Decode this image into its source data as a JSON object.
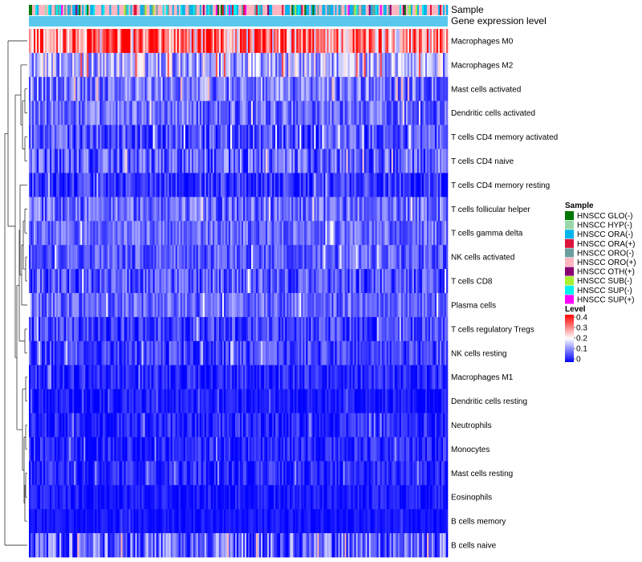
{
  "chart_data": {
    "type": "heatmap",
    "title": "",
    "annotations": {
      "sample_track_label": "Sample",
      "level_track_label": "Gene expression level"
    },
    "rows": [
      {
        "label": "Macrophages M0",
        "mean": 0.26,
        "spread": 0.14
      },
      {
        "label": "Macrophages M2",
        "mean": 0.12,
        "spread": 0.09
      },
      {
        "label": "Mast cells activated",
        "mean": 0.08,
        "spread": 0.07
      },
      {
        "label": "Dendritic cells activated",
        "mean": 0.07,
        "spread": 0.06
      },
      {
        "label": "T cells CD4 memory activated",
        "mean": 0.05,
        "spread": 0.06
      },
      {
        "label": "T cells CD4 naive",
        "mean": 0.06,
        "spread": 0.07
      },
      {
        "label": "T cells CD4 memory resting",
        "mean": 0.03,
        "spread": 0.05
      },
      {
        "label": "T cells follicular helper",
        "mean": 0.07,
        "spread": 0.06
      },
      {
        "label": "T cells gamma delta",
        "mean": 0.07,
        "spread": 0.05
      },
      {
        "label": "NK cells activated",
        "mean": 0.06,
        "spread": 0.05
      },
      {
        "label": "T cells CD8",
        "mean": 0.05,
        "spread": 0.06
      },
      {
        "label": "Plasma cells",
        "mean": 0.07,
        "spread": 0.05
      },
      {
        "label": "T cells regulatory  Tregs",
        "mean": 0.04,
        "spread": 0.05
      },
      {
        "label": "NK cells resting",
        "mean": 0.04,
        "spread": 0.05
      },
      {
        "label": "Macrophages M1",
        "mean": 0.02,
        "spread": 0.04
      },
      {
        "label": "Dendritic cells resting",
        "mean": 0.01,
        "spread": 0.03
      },
      {
        "label": "Neutrophils",
        "mean": 0.02,
        "spread": 0.04
      },
      {
        "label": "Monocytes",
        "mean": 0.02,
        "spread": 0.04
      },
      {
        "label": "Mast cells resting",
        "mean": 0.02,
        "spread": 0.04
      },
      {
        "label": "Eosinophils",
        "mean": 0.01,
        "spread": 0.03
      },
      {
        "label": "B cells memory",
        "mean": 0.01,
        "spread": 0.02
      },
      {
        "label": "B cells naive",
        "mean": 0.06,
        "spread": 0.08
      }
    ],
    "n_samples": 260,
    "sample_groups": [
      {
        "name": "HNSCC GLO(-)",
        "color": "#007700",
        "weight": 3
      },
      {
        "name": "HNSCC HYP(-)",
        "color": "#99d8a8",
        "weight": 3
      },
      {
        "name": "HNSCC ORA(-)",
        "color": "#00b4ee",
        "weight": 22
      },
      {
        "name": "HNSCC ORA(+)",
        "color": "#dc143c",
        "weight": 3
      },
      {
        "name": "HNSCC ORO(-)",
        "color": "#6a9fa0",
        "weight": 5
      },
      {
        "name": "HNSCC ORO(+)",
        "color": "#ffb6c1",
        "weight": 34
      },
      {
        "name": "HNSCC OTH(+)",
        "color": "#8b0070",
        "weight": 2
      },
      {
        "name": "HNSCC SUB(-)",
        "color": "#a8f030",
        "weight": 2
      },
      {
        "name": "HNSCC SUP(-)",
        "color": "#00f0f0",
        "weight": 8
      },
      {
        "name": "HNSCC SUP(+)",
        "color": "#ff00ff",
        "weight": 2
      }
    ],
    "level_track_color": "#5ac8ee",
    "color_scale": {
      "title": "Level",
      "range": [
        0,
        0.4
      ],
      "ticks": [
        "0.4",
        "0.3",
        "0.2",
        "0.1",
        "0"
      ],
      "colors": [
        "#0000ff",
        "#ffffff",
        "#ff0000"
      ]
    },
    "legend": {
      "sample_title": "Sample",
      "position": "right"
    },
    "row_dendrogram": true
  }
}
